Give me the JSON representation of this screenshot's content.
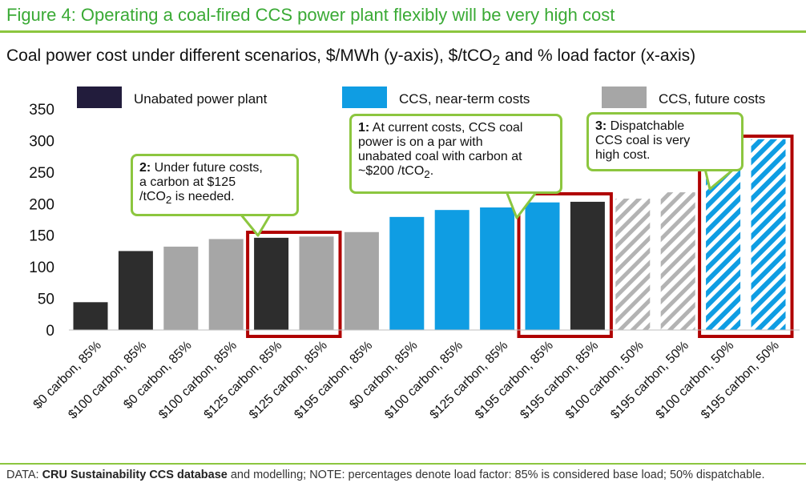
{
  "figure_title": "Figure 4: Operating a coal-fired CCS power plant flexibly will be very high cost",
  "subtitle": {
    "main": "Coal power cost under different scenarios, $/MWh (y-axis), $/tCO",
    "sub": "2",
    "tail": " and % load factor (x-axis)"
  },
  "chart_data": {
    "type": "bar",
    "title": "",
    "xlabel": "",
    "ylabel": "",
    "ylim": [
      0,
      350
    ],
    "yticks": [
      0,
      50,
      100,
      150,
      200,
      250,
      300,
      350
    ],
    "categories": [
      "$0 carbon, 85%",
      "$100 carbon, 85%",
      "$0 carbon, 85%",
      "$100 carbon, 85%",
      "$125 carbon, 85%",
      "$125 carbon, 85%",
      "$195 carbon, 85%",
      "$0 carbon, 85%",
      "$100 carbon, 85%",
      "$125 carbon, 85%",
      "$195 carbon, 85%",
      "$195 carbon, 85%",
      "$100 carbon, 50%",
      "$195 carbon, 50%",
      "$100 carbon, 50%",
      "$195 carbon, 50%"
    ],
    "values": [
      44,
      125,
      132,
      144,
      146,
      148,
      155,
      179,
      190,
      194,
      202,
      203,
      208,
      218,
      261,
      302
    ],
    "bar_series": [
      0,
      0,
      2,
      2,
      0,
      2,
      2,
      1,
      1,
      1,
      1,
      0,
      2,
      2,
      1,
      1
    ],
    "bar_hatched": [
      false,
      false,
      false,
      false,
      false,
      false,
      false,
      false,
      false,
      false,
      false,
      false,
      true,
      true,
      true,
      true
    ],
    "highlight_groups": [
      [
        4,
        5
      ],
      [
        10,
        11
      ],
      [
        14,
        15
      ]
    ],
    "grid": false,
    "legend_position": "top",
    "series": [
      {
        "name": "Unabated power plant",
        "color": "#2d2d2d",
        "legend_color": "#221c3c"
      },
      {
        "name": "CCS, near-term costs",
        "color": "#0f9de3",
        "legend_color": "#0f9de3"
      },
      {
        "name": "CCS, future costs",
        "color": "#a6a6a6",
        "legend_color": "#a6a6a6"
      }
    ],
    "highlight_color": "#b00000"
  },
  "callouts": [
    {
      "num": "2:",
      "lines": [
        {
          "text": " Under future costs,"
        },
        {
          "text": "a carbon at $125"
        },
        {
          "text": "/tCO",
          "sub": "2",
          "tail": " is needed."
        }
      ]
    },
    {
      "num": "1:",
      "lines": [
        {
          "text": " At current costs, CCS coal"
        },
        {
          "text": "power is on a par with"
        },
        {
          "text": "unabated coal with carbon at"
        },
        {
          "text": "~$200 /tCO",
          "sub": "2",
          "tail": "."
        }
      ]
    },
    {
      "num": "3:",
      "lines": [
        {
          "text": " Dispatchable"
        },
        {
          "text": "CCS coal is very"
        },
        {
          "text": "high cost."
        }
      ]
    }
  ],
  "footnote": {
    "label": "DATA: ",
    "source": "CRU Sustainability CCS database",
    "rest": " and modelling; NOTE: percentages denote load factor: 85% is considered base load; 50% dispatchable."
  }
}
